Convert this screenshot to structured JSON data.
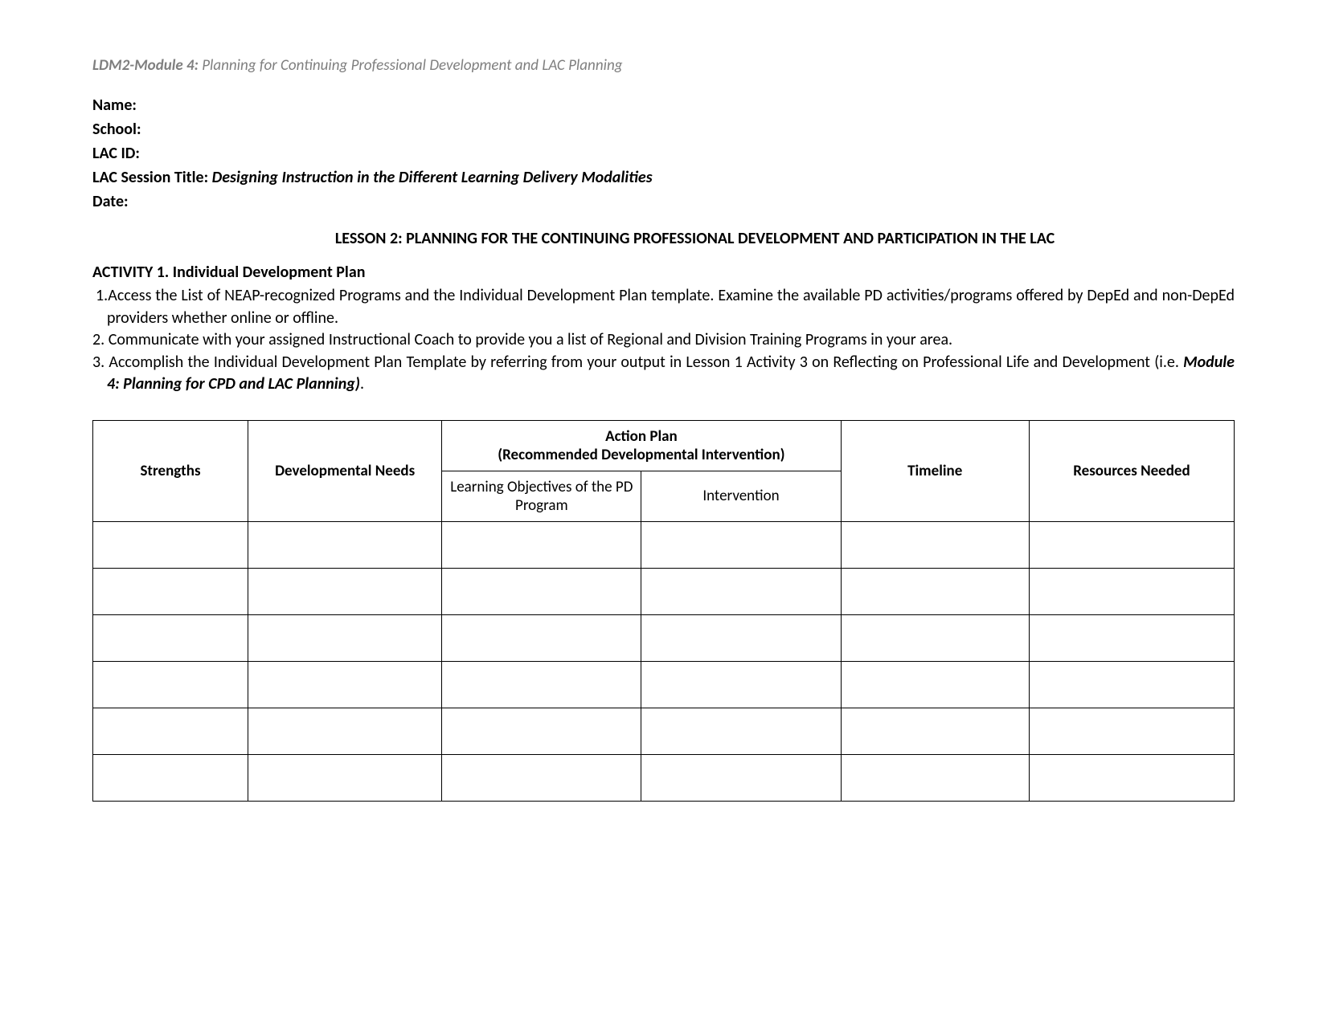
{
  "header": {
    "module_prefix": "LDM2-Module 4:",
    "module_rest": " Planning for Continuing Professional Development and LAC Planning"
  },
  "info": {
    "name_label": "Name:",
    "school_label": "School:",
    "lacid_label": "LAC ID:",
    "session_label": "LAC Session Title: ",
    "session_value": "Designing Instruction in the Different Learning Delivery Modalities",
    "date_label": "Date:"
  },
  "lesson_title": "LESSON 2: PLANNING FOR THE CONTINUING PROFESSIONAL DEVELOPMENT AND PARTICIPATION IN THE LAC",
  "activity_title": "ACTIVITY 1. Individual Development Plan",
  "instructions": {
    "i1": "1.Access the List of NEAP-recognized Programs and the Individual Development Plan template. Examine the available PD activities/programs offered by DepEd and non-DepEd providers whether online or offline.",
    "i2": "2. Communicate with your assigned Instructional Coach to provide you a list of Regional and Division Training Programs in your area.",
    "i3a": "3. Accomplish the Individual Development Plan Template by referring from your output in Lesson 1 Activity 3 on Reflecting on Professional Life and Development (i.e. ",
    "i3b": "Module 4: Planning for CPD and LAC Planning)",
    "i3c": "."
  },
  "table": {
    "headers": {
      "strengths": "Strengths",
      "devneeds": "Developmental Needs",
      "actionplan_line1": "Action Plan",
      "actionplan_line2": "(Recommended Developmental Intervention)",
      "learnobj": "Learning Objectives of the PD Program",
      "intervention": "Intervention",
      "timeline": "Timeline",
      "resources": "Resources Needed"
    },
    "num_body_rows": 6
  },
  "style": {
    "text_color": "#000000",
    "header_gray": "#7f7f7f",
    "border_color": "#000000",
    "background": "#ffffff",
    "body_font_size": 20,
    "header_font_size": 19
  }
}
